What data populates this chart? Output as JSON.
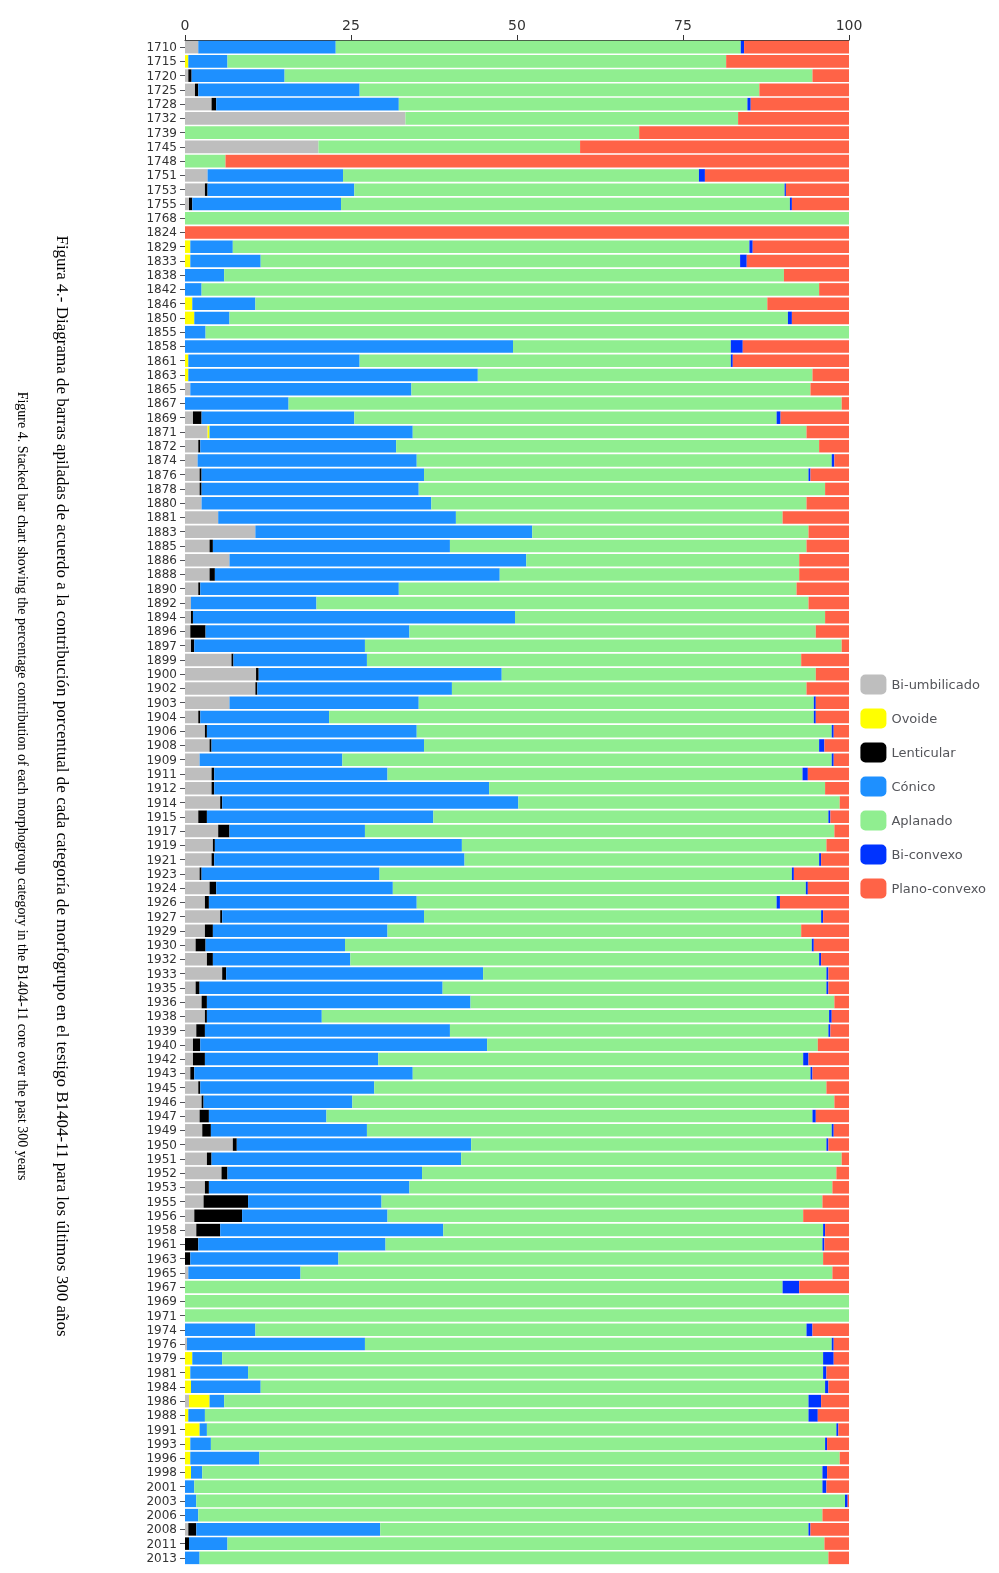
{
  "chart_data": {
    "type": "bar",
    "orientation": "horizontal",
    "stacked": true,
    "title": "Figura 4.- Diagrama de barras apiladas de acuerdo a la contribución porcentual de cada categoría de morfogrupo en el testigo B1404-11 para los últimos 300 años",
    "subtitle": "Figure 4. Stacked bar chart showing the percentage contribution of each morphogroup category in the B1404-11 core over the past 300 years",
    "xlim": [
      0,
      100
    ],
    "xticks": [
      0,
      25,
      50,
      75,
      100
    ],
    "grid": false,
    "legend": "right",
    "categories": [
      "1710",
      "1715",
      "1720",
      "1725",
      "1728",
      "1732",
      "1739",
      "1745",
      "1748",
      "1751",
      "1753",
      "1755",
      "1768",
      "1824",
      "1829",
      "1833",
      "1838",
      "1842",
      "1846",
      "1850",
      "1855",
      "1858",
      "1861",
      "1863",
      "1865",
      "1867",
      "1869",
      "1871",
      "1872",
      "1874",
      "1876",
      "1878",
      "1880",
      "1881",
      "1883",
      "1885",
      "1886",
      "1888",
      "1890",
      "1892",
      "1894",
      "1896",
      "1897",
      "1899",
      "1900",
      "1902",
      "1903",
      "1904",
      "1906",
      "1908",
      "1909",
      "1911",
      "1912",
      "1914",
      "1915",
      "1917",
      "1919",
      "1921",
      "1923",
      "1924",
      "1926",
      "1927",
      "1929",
      "1930",
      "1932",
      "1933",
      "1935",
      "1936",
      "1938",
      "1939",
      "1940",
      "1942",
      "1943",
      "1945",
      "1946",
      "1947",
      "1949",
      "1950",
      "1951",
      "1952",
      "1953",
      "1955",
      "1956",
      "1958",
      "1961",
      "1963",
      "1965",
      "1967",
      "1969",
      "1971",
      "1974",
      "1976",
      "1979",
      "1981",
      "1984",
      "1986",
      "1988",
      "1991",
      "1993",
      "1996",
      "1998",
      "2001",
      "2003",
      "2006",
      "2008",
      "2011",
      "2013"
    ],
    "series": [
      {
        "name": "Bi-umbilicado",
        "color": "#bebebe",
        "values": [
          2,
          0,
          0.5,
          1.5,
          4,
          33.2,
          0,
          20.1,
          0,
          3.4,
          3,
          0.6,
          0,
          0,
          0,
          0,
          0,
          0,
          0,
          0,
          0,
          0,
          0,
          0,
          0.8,
          0,
          1.2,
          3.4,
          2,
          1.9,
          2.2,
          2.2,
          2.5,
          5,
          10.6,
          3.7,
          6.7,
          3.7,
          2,
          0.9,
          0.9,
          0.8,
          0.9,
          7,
          10.7,
          10.6,
          6.7,
          2,
          3,
          3.7,
          2.2,
          4,
          4,
          5.3,
          2,
          5,
          4.2,
          4,
          2.2,
          3.7,
          3,
          5.3,
          3,
          1.6,
          3.3,
          5.6,
          1.6,
          2.5,
          3,
          1.7,
          1.2,
          1.2,
          0.8,
          2,
          2.5,
          2.2,
          2.6,
          7.2,
          3.3,
          5.5,
          3,
          2.8,
          1.4,
          1.7,
          0,
          0,
          0.5,
          0,
          0,
          0,
          0,
          0.3,
          0,
          0,
          0,
          0.6,
          0,
          0,
          0,
          0,
          0,
          0,
          0,
          0,
          0.5,
          0,
          0
        ]
      },
      {
        "name": "Ovoide",
        "color": "#ffff00",
        "values": [
          0,
          0.5,
          0,
          0,
          0,
          0,
          0,
          0,
          0,
          0,
          0,
          0,
          0,
          0,
          0.8,
          0.8,
          0,
          0,
          1.1,
          1.4,
          0,
          0,
          0.5,
          0.5,
          0,
          0,
          0,
          0.3,
          0,
          0,
          0,
          0,
          0,
          0,
          0,
          0,
          0,
          0,
          0,
          0,
          0,
          0,
          0,
          0,
          0,
          0,
          0,
          0,
          0,
          0,
          0,
          0,
          0,
          0,
          0,
          0,
          0,
          0,
          0,
          0,
          0,
          0,
          0,
          0,
          0,
          0,
          0,
          0,
          0,
          0,
          0,
          0,
          0,
          0,
          0,
          0,
          0,
          0,
          0,
          0,
          0,
          0,
          0,
          0,
          0,
          0,
          0,
          0,
          0,
          0,
          0,
          0,
          1.1,
          0.8,
          0.9,
          3.1,
          0.5,
          2.2,
          0.8,
          0.8,
          0.9,
          0,
          0,
          0,
          0,
          0,
          0
        ]
      },
      {
        "name": "Lenticular",
        "color": "#000000",
        "values": [
          0,
          0,
          0.5,
          0.5,
          0.7,
          0,
          0,
          0,
          0,
          0,
          0.4,
          0.5,
          0,
          0,
          0,
          0,
          0,
          0,
          0,
          0,
          0,
          0,
          0,
          0,
          0,
          0,
          1.3,
          0,
          0.3,
          0,
          0.3,
          0.3,
          0,
          0,
          0,
          0.5,
          0,
          0.8,
          0.3,
          0,
          0.3,
          2.3,
          0.5,
          0.3,
          0.4,
          0.3,
          0,
          0.3,
          0.3,
          0.3,
          0,
          0.4,
          0.4,
          0.3,
          1.3,
          1.7,
          0.3,
          0.4,
          0.3,
          1,
          0.6,
          0.3,
          1.2,
          1.5,
          0.9,
          0.6,
          0.6,
          0.8,
          0.3,
          1.3,
          1.1,
          1.8,
          0.6,
          0.3,
          0.3,
          1.4,
          1.3,
          0.6,
          0.7,
          0.9,
          0.6,
          6.7,
          7.2,
          3.6,
          2,
          0.8,
          0,
          0,
          0,
          0,
          0,
          0,
          0,
          0,
          0,
          0,
          0,
          0,
          0,
          0,
          0,
          0,
          0,
          0,
          1.2,
          0.6,
          0
        ]
      },
      {
        "name": "Cónico",
        "color": "#1e90ff",
        "values": [
          20.7,
          5.9,
          14,
          24.3,
          27.5,
          0,
          0,
          0,
          0,
          20.4,
          22.1,
          22.4,
          0,
          0,
          6.4,
          10.6,
          5.9,
          2.5,
          9.5,
          5.3,
          3.1,
          49.4,
          25.8,
          43.6,
          33.3,
          15.6,
          23,
          30.6,
          29.5,
          33,
          33.5,
          32.7,
          34.6,
          35.8,
          41.7,
          35.7,
          44.7,
          42.9,
          29.9,
          18.9,
          48.5,
          30.7,
          25.7,
          20.1,
          36.6,
          29.3,
          28.5,
          19.4,
          31.6,
          32,
          21.5,
          26.1,
          41.4,
          44.6,
          34.1,
          20.4,
          37.2,
          37.7,
          26.8,
          26.6,
          31.3,
          30.4,
          26.3,
          21,
          20.7,
          38.7,
          36.6,
          39.7,
          17.3,
          36.9,
          43.2,
          26.1,
          32.9,
          26.2,
          22.4,
          17.7,
          23.5,
          35.3,
          37.6,
          29.3,
          30.2,
          20.1,
          21.9,
          33.6,
          28.2,
          22.3,
          16.9,
          0,
          0,
          0,
          10.6,
          26.8,
          4.5,
          8.7,
          10.5,
          2.2,
          2.5,
          1.1,
          3.1,
          10.4,
          1.7,
          1.4,
          1.7,
          2,
          27.7,
          5.8,
          2.2
        ]
      },
      {
        "name": "Aplanado",
        "color": "#90ee90",
        "values": [
          61,
          75.1,
          79.5,
          60.2,
          52.5,
          50.1,
          68.4,
          39.4,
          6.1,
          53.6,
          64.8,
          67.6,
          100,
          0,
          77.8,
          72.2,
          84.3,
          93,
          77.1,
          84.1,
          96.9,
          32.8,
          55.9,
          50.4,
          60.1,
          83.3,
          63.6,
          59.3,
          63.7,
          62.5,
          57.9,
          61.2,
          56.5,
          49.2,
          41.6,
          53.7,
          41.1,
          45.1,
          59.9,
          74.1,
          46.7,
          61.2,
          71.8,
          65.4,
          47.3,
          53.4,
          59.5,
          73,
          62.5,
          59.5,
          73.7,
          62.5,
          50.6,
          48.4,
          59.5,
          70.7,
          54.9,
          53.4,
          62.1,
          62.2,
          54.2,
          59.8,
          62.3,
          70.3,
          70.6,
          51.7,
          57.8,
          54.8,
          76.4,
          57,
          49.8,
          64,
          59.9,
          68.1,
          72.6,
          73.2,
          70,
          53.5,
          57.3,
          62.4,
          63.7,
          66.4,
          62.6,
          57.2,
          65.8,
          73,
          80.1,
          90,
          100,
          100,
          83,
          70.3,
          90.5,
          86.6,
          85,
          88,
          90.9,
          94.8,
          92.5,
          87.4,
          93.4,
          94.6,
          97.7,
          94,
          64.5,
          89.9,
          94.7
        ]
      },
      {
        "name": "Bi-convexo",
        "color": "#0033ff",
        "values": [
          0.5,
          0,
          0,
          0,
          0.5,
          0,
          0,
          0,
          0,
          0.9,
          0.2,
          0.3,
          0,
          0,
          0.5,
          1,
          0,
          0,
          0,
          0.6,
          0,
          1.8,
          0.3,
          0,
          0,
          0,
          0.6,
          0,
          0,
          0.4,
          0.3,
          0,
          0,
          0,
          0,
          0,
          0,
          0,
          0,
          0,
          0,
          0,
          0,
          0,
          0,
          0,
          0.3,
          0.3,
          0.3,
          0.8,
          0.3,
          0.8,
          0,
          0,
          0.3,
          0,
          0,
          0.3,
          0.3,
          0.3,
          0.5,
          0.3,
          0,
          0.3,
          0.3,
          0.3,
          0.3,
          0,
          0.4,
          0.3,
          0,
          0.8,
          0.3,
          0,
          0,
          0.5,
          0.3,
          0.3,
          0,
          0,
          0,
          0,
          0,
          0.3,
          0.3,
          0,
          0,
          2.5,
          0,
          0,
          0.9,
          0.3,
          1.6,
          0.5,
          0.5,
          1.9,
          1.4,
          0.3,
          0.3,
          0,
          0.7,
          0.6,
          0.4,
          0,
          0.3,
          0,
          0
        ]
      },
      {
        "name": "Plano-convexo",
        "color": "#ff6347",
        "values": [
          16,
          18.5,
          5.5,
          13.5,
          14.8,
          16.7,
          31.6,
          40.5,
          93.9,
          21.7,
          9.5,
          8.6,
          0,
          100,
          14.5,
          15.4,
          9.8,
          4.5,
          12.3,
          8.6,
          0,
          16,
          17.5,
          5.5,
          5.8,
          1.1,
          10.3,
          6.4,
          4.5,
          2.2,
          5.8,
          3.6,
          6.4,
          10,
          6.1,
          6.4,
          7.5,
          7.5,
          7.9,
          6.1,
          3.6,
          5,
          1.1,
          7.2,
          5,
          6.4,
          5,
          5,
          2.3,
          3.7,
          2.3,
          6.2,
          3.6,
          1.4,
          2.8,
          2.2,
          3.4,
          4.2,
          8.3,
          6.2,
          10.4,
          3.9,
          7.2,
          5.3,
          4.2,
          3.1,
          3.1,
          2.2,
          2.6,
          2.8,
          4.7,
          6.1,
          5.5,
          3.4,
          2.2,
          5,
          2.3,
          3.1,
          1.1,
          1.9,
          2.5,
          4,
          6.9,
          3.6,
          3.7,
          3.9,
          2.5,
          7.5,
          0,
          0,
          5.5,
          2.3,
          2.3,
          3.4,
          3.1,
          4.2,
          4.7,
          1.6,
          3.3,
          1.4,
          3.3,
          3.4,
          0.2,
          4,
          5.8,
          3.7,
          3.1
        ]
      }
    ]
  }
}
